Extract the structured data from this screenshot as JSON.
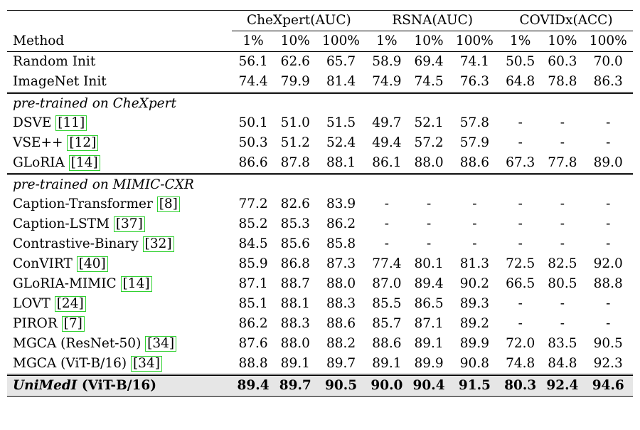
{
  "groups": [
    "CheXpert(AUC)",
    "RSNA(AUC)",
    "COVIDx(ACC)"
  ],
  "method_header": "Method",
  "subcols": [
    "1%",
    "10%",
    "100%",
    "1%",
    "10%",
    "100%",
    "1%",
    "10%",
    "100%"
  ],
  "baseline_rows": [
    {
      "name": "Random Init",
      "cite": "",
      "values": [
        "56.1",
        "62.6",
        "65.7",
        "58.9",
        "69.4",
        "74.1",
        "50.5",
        "60.3",
        "70.0"
      ]
    },
    {
      "name": "ImageNet Init",
      "cite": "",
      "values": [
        "74.4",
        "79.9",
        "81.4",
        "74.9",
        "74.5",
        "76.3",
        "64.8",
        "78.8",
        "86.3"
      ]
    }
  ],
  "section1": {
    "title": "pre-trained on CheXpert",
    "rows": [
      {
        "name": "DSVE ",
        "cite": "[11]",
        "values": [
          "50.1",
          "51.0",
          "51.5",
          "49.7",
          "52.1",
          "57.8",
          "-",
          "-",
          "-"
        ]
      },
      {
        "name": "VSE++ ",
        "cite": "[12]",
        "values": [
          "50.3",
          "51.2",
          "52.4",
          "49.4",
          "57.2",
          "57.9",
          "-",
          "-",
          "-"
        ]
      },
      {
        "name": "GLoRIA ",
        "cite": "[14]",
        "values": [
          "86.6",
          "87.8",
          "88.1",
          "86.1",
          "88.0",
          "88.6",
          "67.3",
          "77.8",
          "89.0"
        ]
      }
    ]
  },
  "section2": {
    "title": "pre-trained on MIMIC-CXR",
    "rows": [
      {
        "name": "Caption-Transformer ",
        "cite": "[8]",
        "values": [
          "77.2",
          "82.6",
          "83.9",
          "-",
          "-",
          "-",
          "-",
          "-",
          "-"
        ]
      },
      {
        "name": "Caption-LSTM ",
        "cite": "[37]",
        "values": [
          "85.2",
          "85.3",
          "86.2",
          "-",
          "-",
          "-",
          "-",
          "-",
          "-"
        ]
      },
      {
        "name": "Contrastive-Binary ",
        "cite": "[32]",
        "values": [
          "84.5",
          "85.6",
          "85.8",
          "-",
          "-",
          "-",
          "-",
          "-",
          "-"
        ]
      },
      {
        "name": "ConVIRT ",
        "cite": "[40]",
        "values": [
          "85.9",
          "86.8",
          "87.3",
          "77.4",
          "80.1",
          "81.3",
          "72.5",
          "82.5",
          "92.0"
        ]
      },
      {
        "name": "GLoRIA-MIMIC ",
        "cite": "[14]",
        "values": [
          "87.1",
          "88.7",
          "88.0",
          "87.0",
          "89.4",
          "90.2",
          "66.5",
          "80.5",
          "88.8"
        ]
      },
      {
        "name": "LOVT ",
        "cite": "[24]",
        "values": [
          "85.1",
          "88.1",
          "88.3",
          "85.5",
          "86.5",
          "89.3",
          "-",
          "-",
          "-"
        ]
      },
      {
        "name": "PIROR ",
        "cite": "[7]",
        "values": [
          "86.2",
          "88.3",
          "88.6",
          "85.7",
          "87.1",
          "89.2",
          "-",
          "-",
          "-"
        ]
      },
      {
        "name": "MGCA (ResNet-50) ",
        "cite": "[34]",
        "values": [
          "87.6",
          "88.0",
          "88.2",
          "88.6",
          "89.1",
          "89.9",
          "72.0",
          "83.5",
          "90.5"
        ]
      },
      {
        "name": "MGCA (ViT-B/16) ",
        "cite": "[34]",
        "values": [
          "88.8",
          "89.1",
          "89.7",
          "89.1",
          "89.9",
          "90.8",
          "74.8",
          "84.8",
          "92.3"
        ]
      }
    ]
  },
  "ours": {
    "name_italic": "UniMedI",
    "name_rest": " (ViT-B/16)",
    "values": [
      "89.4",
      "89.7",
      "90.5",
      "90.0",
      "90.4",
      "91.5",
      "80.3",
      "92.4",
      "94.6"
    ]
  }
}
